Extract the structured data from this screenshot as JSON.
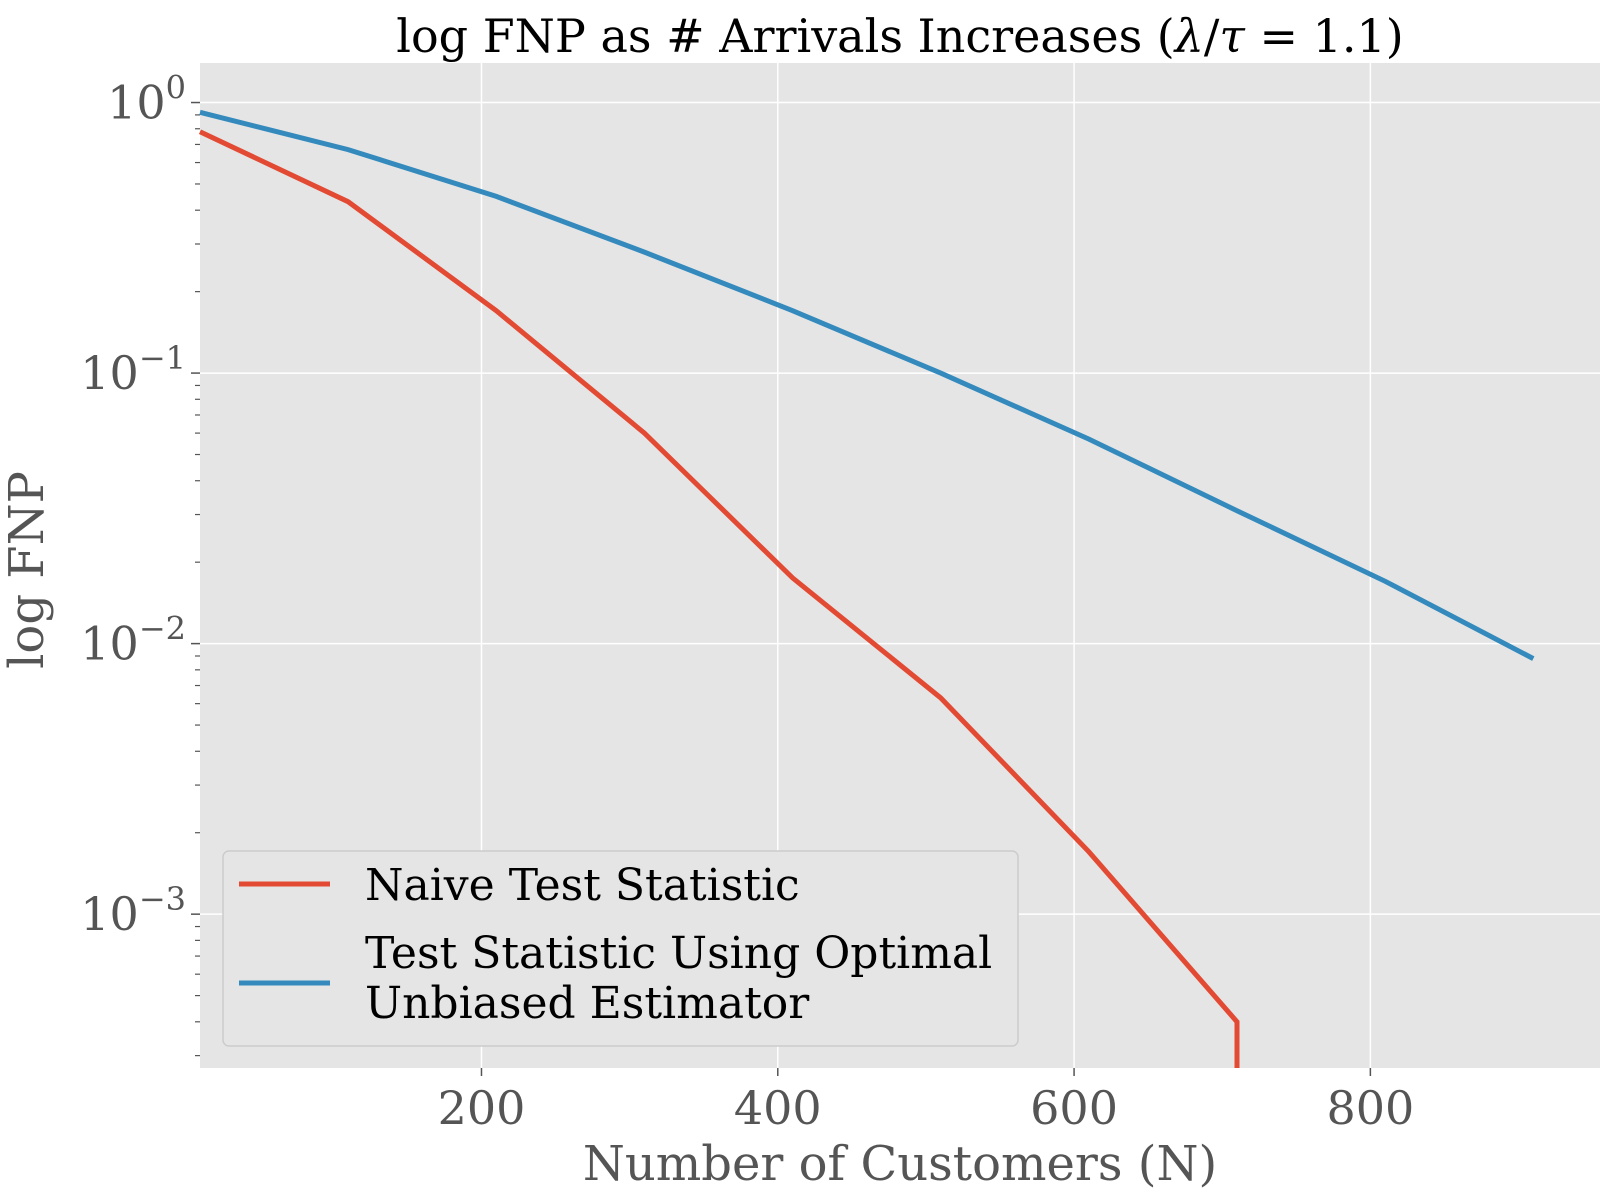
{
  "chart_data": {
    "type": "line",
    "title_prefix": "log FNP as # Arrivals Increases (",
    "title_lambda": "λ",
    "title_slash": "/",
    "title_tau": "τ",
    "title_suffix": " = 1.1)",
    "xlabel": "Number of Customers (N)",
    "ylabel": "log FNP",
    "y_scale": "log",
    "xlim": [
      10,
      955
    ],
    "ylim": [
      0.00027,
      1.4
    ],
    "x_ticks": [
      200,
      400,
      600,
      800
    ],
    "y_ticks": [
      {
        "value": 1,
        "base": "10",
        "exp": "0"
      },
      {
        "value": 0.1,
        "base": "10",
        "exp": "−1"
      },
      {
        "value": 0.01,
        "base": "10",
        "exp": "−2"
      },
      {
        "value": 0.001,
        "base": "10",
        "exp": "−3"
      }
    ],
    "grid": true,
    "legend_position": "lower-left",
    "series": [
      {
        "name": "Naive Test Statistic",
        "color": "#E24A33",
        "x": [
          10,
          110,
          210,
          310,
          410,
          510,
          610,
          710,
          710
        ],
        "y": [
          0.78,
          0.43,
          0.17,
          0.06,
          0.0175,
          0.0063,
          0.0017,
          0.0004,
          0.00027
        ]
      },
      {
        "name": "Test Statistic Using Optimal Unbiased Estimator",
        "legend_lines": [
          "Test Statistic Using Optimal",
          "Unbiased Estimator"
        ],
        "color": "#348ABD",
        "x": [
          10,
          110,
          210,
          310,
          410,
          510,
          610,
          710,
          810,
          910
        ],
        "y": [
          0.92,
          0.67,
          0.45,
          0.28,
          0.17,
          0.1,
          0.057,
          0.031,
          0.017,
          0.0088
        ]
      }
    ]
  }
}
